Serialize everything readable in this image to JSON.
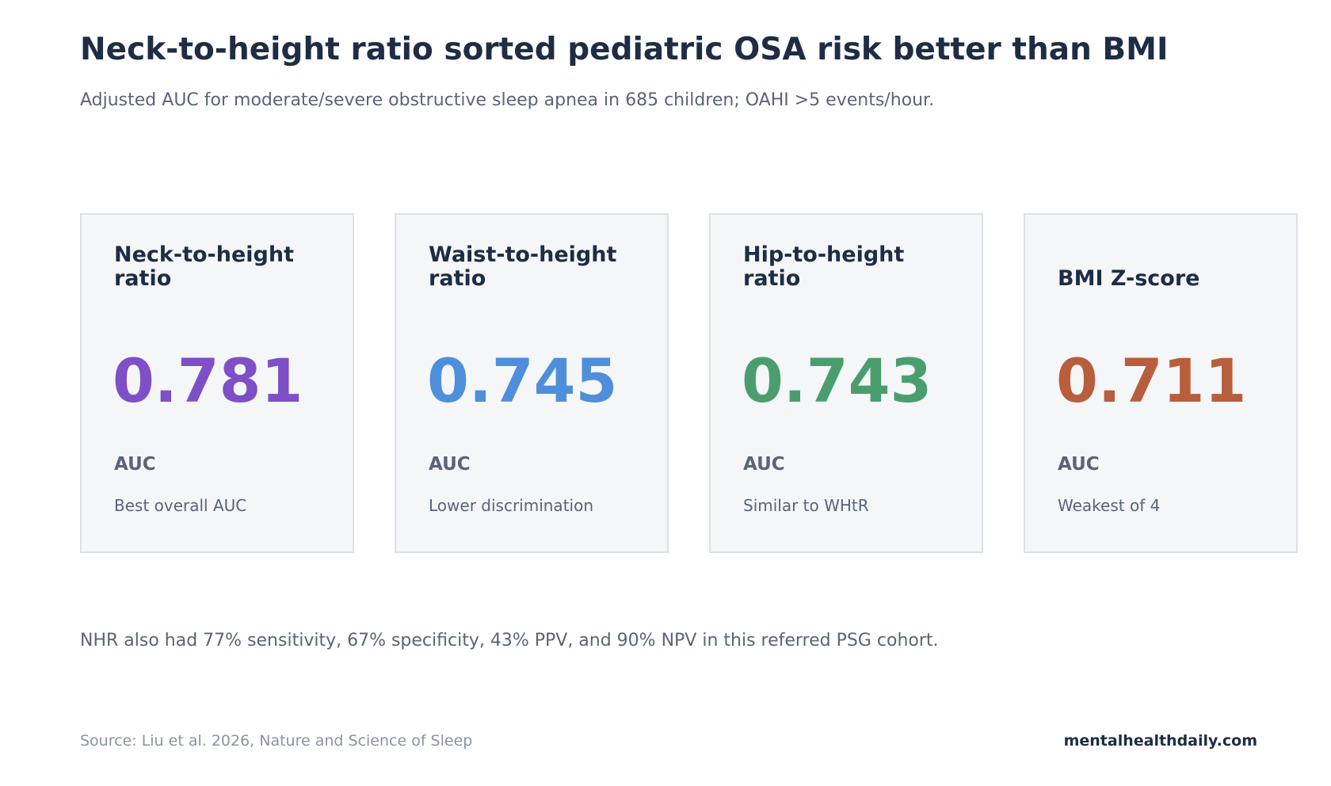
{
  "header": {
    "title": "Neck-to-height ratio sorted pediatric OSA risk better than BMI",
    "subtitle": "Adjusted AUC for moderate/severe obstructive sleep apnea in 685 children; OAHI >5 events/hour."
  },
  "cards": [
    {
      "label": "Neck-to-height ratio",
      "value": 0.781,
      "unit": "AUC",
      "note": "Best overall AUC",
      "color": "#7e4fc6"
    },
    {
      "label": "Waist-to-height ratio",
      "value": 0.745,
      "unit": "AUC",
      "note": "Lower discrimination",
      "color": "#4f8edb"
    },
    {
      "label": "Hip-to-height ratio",
      "value": 0.743,
      "unit": "AUC",
      "note": "Similar to WHtR",
      "color": "#4a9e6e"
    },
    {
      "label": "BMI Z-score",
      "value": 0.711,
      "unit": "AUC",
      "note": "Weakest of 4",
      "color": "#b85e3c"
    }
  ],
  "note": "NHR also had 77% sensitivity, 67% specificity, 43% PPV, and 90% NPV in this referred PSG cohort.",
  "footer": {
    "source": "Source: Liu et al. 2026, Nature and Science of Sleep",
    "brand": "mentalhealthdaily.com"
  }
}
